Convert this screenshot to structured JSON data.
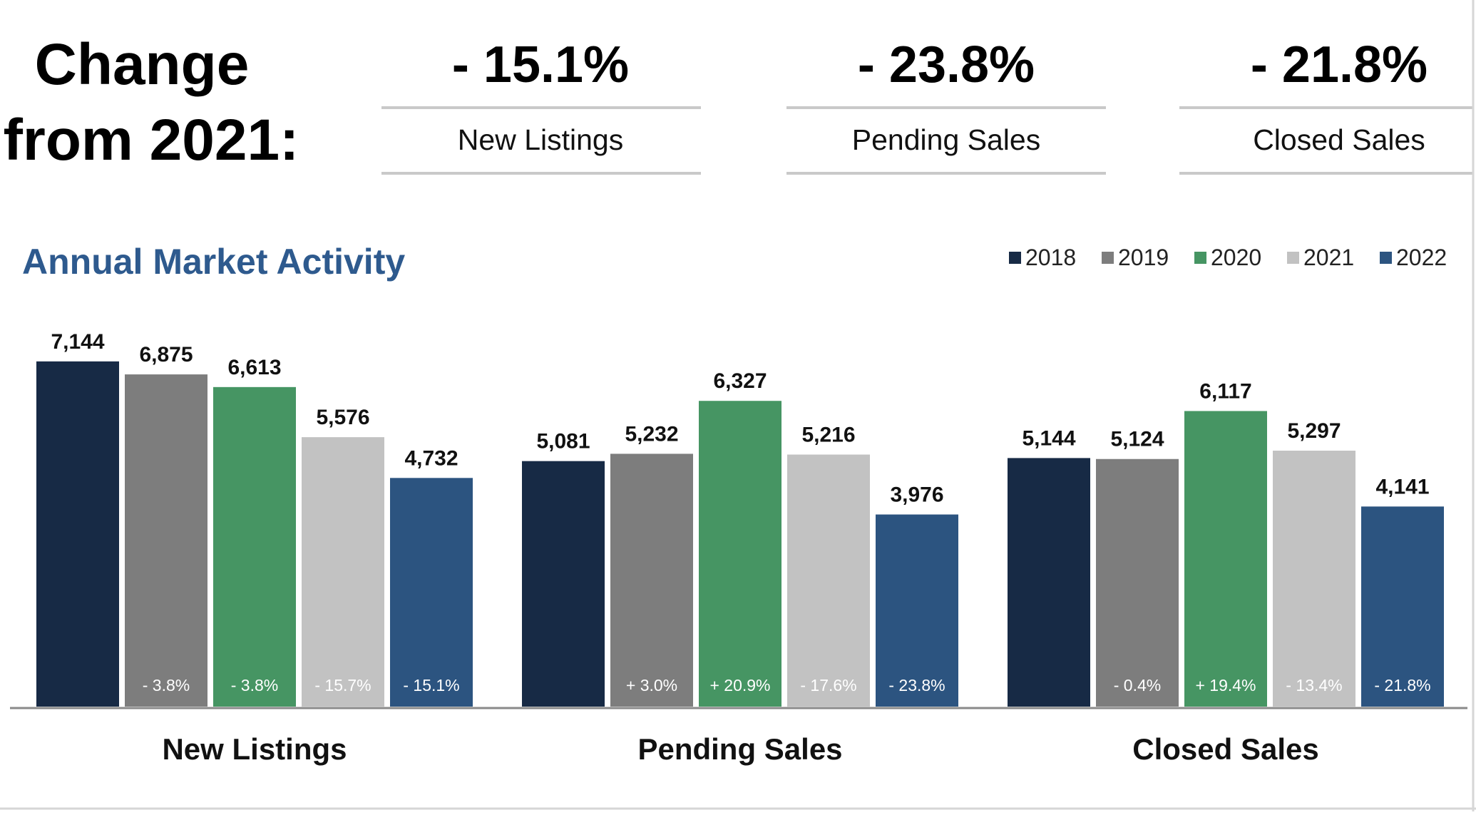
{
  "header": {
    "change_line1": "Change",
    "change_line2": "from 2021:",
    "metrics": [
      {
        "value": "- 15.1%",
        "label": "New Listings"
      },
      {
        "value": "- 23.8%",
        "label": "Pending Sales"
      },
      {
        "value": "- 21.8%",
        "label": "Closed Sales"
      }
    ]
  },
  "chart_data": {
    "type": "bar",
    "title": "Annual Market Activity",
    "title_color": "#2e5a8e",
    "legend_position": "top-right",
    "grid": false,
    "ylim": [
      0,
      7500
    ],
    "categories": [
      "New Listings",
      "Pending Sales",
      "Closed Sales"
    ],
    "series": [
      {
        "name": "2018",
        "color": "#172a45",
        "values": [
          7144,
          5081,
          5144
        ],
        "value_labels": [
          "7,144",
          "5,081",
          "5,144"
        ],
        "change_labels": [
          "",
          "",
          ""
        ]
      },
      {
        "name": "2019",
        "color": "#7d7d7d",
        "values": [
          6875,
          5232,
          5124
        ],
        "value_labels": [
          "6,875",
          "5,232",
          "5,124"
        ],
        "change_labels": [
          "- 3.8%",
          "+ 3.0%",
          "- 0.4%"
        ]
      },
      {
        "name": "2020",
        "color": "#469563",
        "values": [
          6613,
          6327,
          6117
        ],
        "value_labels": [
          "6,613",
          "6,327",
          "6,117"
        ],
        "change_labels": [
          "- 3.8%",
          "+ 20.9%",
          "+ 19.4%"
        ]
      },
      {
        "name": "2021",
        "color": "#c2c2c2",
        "values": [
          5576,
          5216,
          5297
        ],
        "value_labels": [
          "5,576",
          "5,216",
          "5,297"
        ],
        "change_labels": [
          "- 15.7%",
          "- 17.6%",
          "- 13.4%"
        ]
      },
      {
        "name": "2022",
        "color": "#2c5480",
        "values": [
          4732,
          3976,
          4141
        ],
        "value_labels": [
          "4,732",
          "3,976",
          "4,141"
        ],
        "change_labels": [
          "- 15.1%",
          "- 23.8%",
          "- 21.8%"
        ]
      }
    ]
  }
}
